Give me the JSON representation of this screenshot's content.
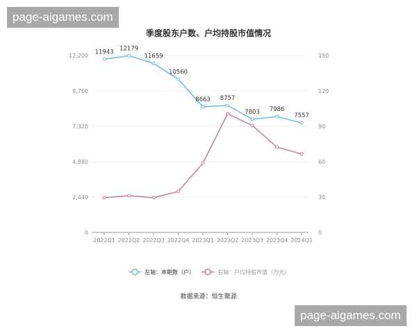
{
  "watermarks": [
    "page-aigames.com",
    "page-aigames.com"
  ],
  "chart_data": {
    "type": "line",
    "title": "季度股东户数、户均持股市值情况",
    "categories": [
      "2022Q1",
      "2022Q2",
      "2022Q3",
      "2022Q4",
      "2023Q1",
      "2023Q2",
      "2023Q3",
      "2023Q4",
      "2024Q1"
    ],
    "left_axis": {
      "ticks": [
        "0",
        "2,440",
        "4,880",
        "7,320",
        "9,760",
        "12,200"
      ],
      "range": [
        0,
        12200
      ]
    },
    "right_axis": {
      "ticks": [
        "0",
        "30",
        "60",
        "90",
        "120",
        "150"
      ],
      "range": [
        0,
        150
      ]
    },
    "grid": true,
    "legend_placement": "bottom",
    "series": [
      {
        "name": "左轴：本期数（户）",
        "axis": "left",
        "color": "#6bb9dd",
        "values": [
          11943,
          12179,
          11659,
          10560,
          8663,
          8757,
          7803,
          7986,
          7557
        ],
        "labels": [
          "11943",
          "12179",
          "11659",
          "10560",
          "8663",
          "8757",
          "7803",
          "7986",
          "7557"
        ]
      },
      {
        "name": "右轴：户均持股市值（万元）",
        "axis": "right",
        "color": "#c27b9a",
        "values": [
          29.4,
          31.2,
          29.4,
          34.7,
          58.8,
          100.6,
          90.6,
          72.4,
          66.5
        ]
      }
    ],
    "source": "数据来源：恒生聚源"
  }
}
